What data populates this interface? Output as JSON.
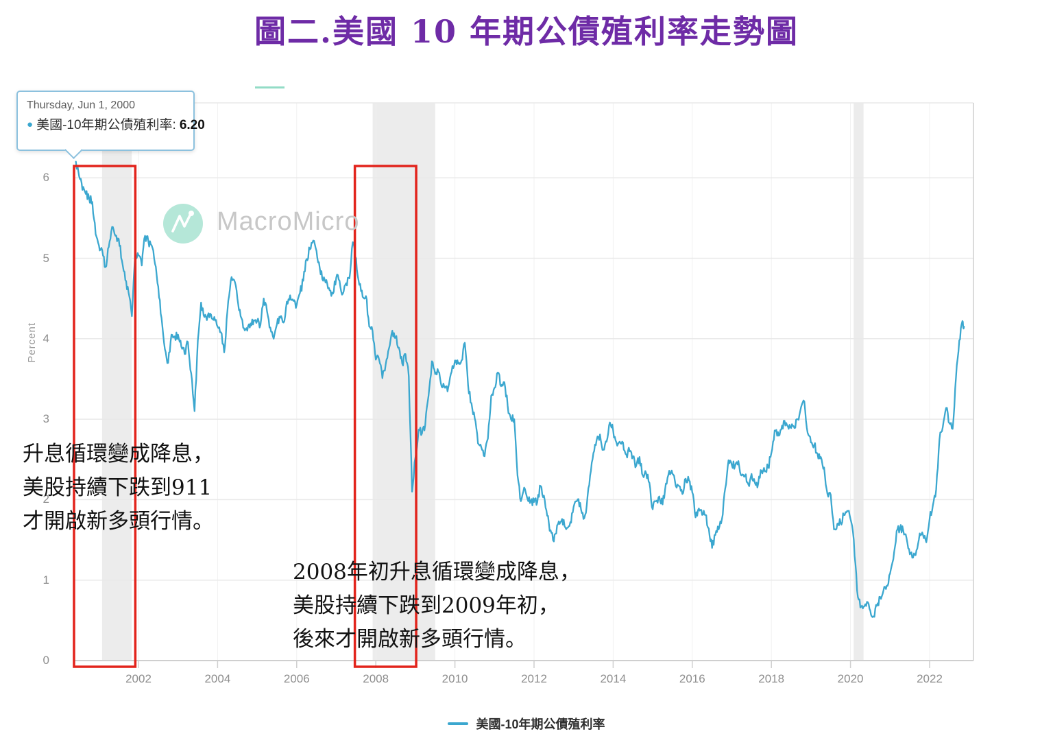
{
  "title": "圖二.美國 10 年期公債殖利率走勢圖",
  "watermark": "MacroMicro",
  "tooltip": {
    "date": "Thursday, Jun 1, 2000",
    "bullet": "●",
    "series_label": "美國-10年期公債殖利率:",
    "value": "6.20"
  },
  "annotations": {
    "left": {
      "line1": "升息循環變成降息，",
      "line2": "美股持續下跌到911",
      "line3": "才開啟新多頭行情。"
    },
    "right": {
      "line1": "2008年初升息循環變成降息，",
      "line2": "美股持續下跌到2009年初，",
      "line3": "後來才開啟新多頭行情。"
    }
  },
  "legend": {
    "label": "美國-10年期公債殖利率"
  },
  "colors": {
    "line": "#3BA7CF",
    "title": "#6E2BA6",
    "highlight_box": "#E2241C",
    "recession_band": "#ECECEC",
    "gridline": "#E9E9E9",
    "axis_line": "#CFCFCF",
    "tick_label": "#8E8E8E",
    "tooltip_border": "#8CC1DE",
    "watermark_circle": "#B5E7D8",
    "watermark_text": "#C7C7C7"
  },
  "chart_data": {
    "type": "line",
    "title": "美國 10 年期公債殖利率走勢圖",
    "ylabel": "Percent",
    "xlabel": "",
    "xlim": [
      2000.3,
      2023.1
    ],
    "ylim": [
      0,
      6.93
    ],
    "x_ticks": [
      2002,
      2004,
      2006,
      2008,
      2010,
      2012,
      2014,
      2016,
      2018,
      2020,
      2022
    ],
    "y_ticks": [
      0,
      1,
      2,
      3,
      4,
      5,
      6
    ],
    "grid": true,
    "legend_position": "bottom-center",
    "recession_bands": [
      [
        2001.08,
        2001.83
      ],
      [
        2007.92,
        2009.5
      ],
      [
        2020.08,
        2020.33
      ]
    ],
    "highlight_boxes": [
      [
        2000.37,
        2001.92
      ],
      [
        2007.47,
        2009.02
      ]
    ],
    "series": [
      {
        "name": "美國-10年期公債殖利率",
        "points": [
          [
            2000.417,
            6.2
          ],
          [
            2000.5,
            6.02
          ],
          [
            2000.583,
            5.85
          ],
          [
            2000.667,
            5.8
          ],
          [
            2000.75,
            5.75
          ],
          [
            2000.833,
            5.7
          ],
          [
            2000.917,
            5.3
          ],
          [
            2001.0,
            5.16
          ],
          [
            2001.083,
            5.1
          ],
          [
            2001.167,
            4.89
          ],
          [
            2001.25,
            5.14
          ],
          [
            2001.333,
            5.39
          ],
          [
            2001.417,
            5.28
          ],
          [
            2001.5,
            5.24
          ],
          [
            2001.583,
            4.97
          ],
          [
            2001.667,
            4.73
          ],
          [
            2001.75,
            4.57
          ],
          [
            2001.833,
            4.28
          ],
          [
            2001.917,
            5.05
          ],
          [
            2002.0,
            5.04
          ],
          [
            2002.083,
            4.91
          ],
          [
            2002.167,
            5.28
          ],
          [
            2002.25,
            5.21
          ],
          [
            2002.333,
            5.16
          ],
          [
            2002.417,
            4.93
          ],
          [
            2002.5,
            4.65
          ],
          [
            2002.583,
            4.26
          ],
          [
            2002.667,
            3.87
          ],
          [
            2002.75,
            3.7
          ],
          [
            2002.833,
            4.05
          ],
          [
            2002.917,
            4.03
          ],
          [
            2003.0,
            4.05
          ],
          [
            2003.083,
            3.9
          ],
          [
            2003.167,
            3.81
          ],
          [
            2003.25,
            3.96
          ],
          [
            2003.333,
            3.57
          ],
          [
            2003.417,
            3.1
          ],
          [
            2003.5,
            3.98
          ],
          [
            2003.583,
            4.45
          ],
          [
            2003.667,
            4.27
          ],
          [
            2003.75,
            4.29
          ],
          [
            2003.833,
            4.3
          ],
          [
            2003.917,
            4.27
          ],
          [
            2004.0,
            4.15
          ],
          [
            2004.083,
            4.08
          ],
          [
            2004.167,
            3.83
          ],
          [
            2004.25,
            4.35
          ],
          [
            2004.333,
            4.72
          ],
          [
            2004.417,
            4.73
          ],
          [
            2004.5,
            4.5
          ],
          [
            2004.583,
            4.28
          ],
          [
            2004.667,
            4.13
          ],
          [
            2004.75,
            4.1
          ],
          [
            2004.833,
            4.19
          ],
          [
            2004.917,
            4.23
          ],
          [
            2005.0,
            4.22
          ],
          [
            2005.083,
            4.17
          ],
          [
            2005.167,
            4.5
          ],
          [
            2005.25,
            4.34
          ],
          [
            2005.333,
            4.14
          ],
          [
            2005.417,
            4.0
          ],
          [
            2005.5,
            4.18
          ],
          [
            2005.583,
            4.26
          ],
          [
            2005.667,
            4.2
          ],
          [
            2005.75,
            4.46
          ],
          [
            2005.833,
            4.54
          ],
          [
            2005.917,
            4.47
          ],
          [
            2006.0,
            4.42
          ],
          [
            2006.083,
            4.57
          ],
          [
            2006.167,
            4.72
          ],
          [
            2006.25,
            4.99
          ],
          [
            2006.333,
            5.11
          ],
          [
            2006.417,
            5.22
          ],
          [
            2006.5,
            5.09
          ],
          [
            2006.583,
            4.88
          ],
          [
            2006.667,
            4.72
          ],
          [
            2006.75,
            4.73
          ],
          [
            2006.833,
            4.6
          ],
          [
            2006.917,
            4.56
          ],
          [
            2007.0,
            4.76
          ],
          [
            2007.083,
            4.72
          ],
          [
            2007.167,
            4.56
          ],
          [
            2007.25,
            4.69
          ],
          [
            2007.333,
            4.75
          ],
          [
            2007.417,
            5.2
          ],
          [
            2007.5,
            5.0
          ],
          [
            2007.583,
            4.67
          ],
          [
            2007.667,
            4.52
          ],
          [
            2007.75,
            4.53
          ],
          [
            2007.833,
            4.15
          ],
          [
            2007.917,
            4.1
          ],
          [
            2008.0,
            3.74
          ],
          [
            2008.083,
            3.74
          ],
          [
            2008.167,
            3.51
          ],
          [
            2008.25,
            3.68
          ],
          [
            2008.333,
            3.88
          ],
          [
            2008.417,
            4.1
          ],
          [
            2008.5,
            4.01
          ],
          [
            2008.583,
            3.89
          ],
          [
            2008.667,
            3.69
          ],
          [
            2008.75,
            3.81
          ],
          [
            2008.833,
            3.53
          ],
          [
            2008.917,
            2.1
          ],
          [
            2009.0,
            2.52
          ],
          [
            2009.083,
            2.87
          ],
          [
            2009.167,
            2.82
          ],
          [
            2009.25,
            2.93
          ],
          [
            2009.333,
            3.29
          ],
          [
            2009.417,
            3.72
          ],
          [
            2009.5,
            3.56
          ],
          [
            2009.583,
            3.59
          ],
          [
            2009.667,
            3.4
          ],
          [
            2009.75,
            3.39
          ],
          [
            2009.833,
            3.4
          ],
          [
            2009.917,
            3.59
          ],
          [
            2010.0,
            3.73
          ],
          [
            2010.083,
            3.69
          ],
          [
            2010.167,
            3.73
          ],
          [
            2010.25,
            3.95
          ],
          [
            2010.333,
            3.42
          ],
          [
            2010.417,
            3.2
          ],
          [
            2010.5,
            3.01
          ],
          [
            2010.583,
            2.7
          ],
          [
            2010.667,
            2.65
          ],
          [
            2010.75,
            2.54
          ],
          [
            2010.833,
            2.76
          ],
          [
            2010.917,
            3.29
          ],
          [
            2011.0,
            3.39
          ],
          [
            2011.083,
            3.58
          ],
          [
            2011.167,
            3.41
          ],
          [
            2011.25,
            3.46
          ],
          [
            2011.333,
            3.17
          ],
          [
            2011.417,
            3.0
          ],
          [
            2011.5,
            3.0
          ],
          [
            2011.583,
            2.3
          ],
          [
            2011.667,
            1.98
          ],
          [
            2011.75,
            2.15
          ],
          [
            2011.833,
            2.01
          ],
          [
            2011.917,
            1.98
          ],
          [
            2012.0,
            1.97
          ],
          [
            2012.083,
            1.97
          ],
          [
            2012.167,
            2.17
          ],
          [
            2012.25,
            2.05
          ],
          [
            2012.333,
            1.8
          ],
          [
            2012.417,
            1.62
          ],
          [
            2012.5,
            1.48
          ],
          [
            2012.583,
            1.68
          ],
          [
            2012.667,
            1.72
          ],
          [
            2012.75,
            1.75
          ],
          [
            2012.833,
            1.65
          ],
          [
            2012.917,
            1.72
          ],
          [
            2013.0,
            1.91
          ],
          [
            2013.083,
            1.98
          ],
          [
            2013.167,
            1.96
          ],
          [
            2013.25,
            1.76
          ],
          [
            2013.333,
            1.93
          ],
          [
            2013.417,
            2.3
          ],
          [
            2013.5,
            2.58
          ],
          [
            2013.583,
            2.74
          ],
          [
            2013.667,
            2.81
          ],
          [
            2013.75,
            2.62
          ],
          [
            2013.833,
            2.72
          ],
          [
            2013.917,
            2.96
          ],
          [
            2014.0,
            2.86
          ],
          [
            2014.083,
            2.71
          ],
          [
            2014.167,
            2.72
          ],
          [
            2014.25,
            2.71
          ],
          [
            2014.333,
            2.56
          ],
          [
            2014.417,
            2.6
          ],
          [
            2014.5,
            2.54
          ],
          [
            2014.583,
            2.42
          ],
          [
            2014.667,
            2.53
          ],
          [
            2014.75,
            2.3
          ],
          [
            2014.833,
            2.33
          ],
          [
            2014.917,
            2.21
          ],
          [
            2015.0,
            1.88
          ],
          [
            2015.083,
            1.98
          ],
          [
            2015.167,
            2.04
          ],
          [
            2015.25,
            1.94
          ],
          [
            2015.333,
            2.2
          ],
          [
            2015.417,
            2.36
          ],
          [
            2015.5,
            2.32
          ],
          [
            2015.583,
            2.17
          ],
          [
            2015.667,
            2.17
          ],
          [
            2015.75,
            2.07
          ],
          [
            2015.833,
            2.26
          ],
          [
            2015.917,
            2.24
          ],
          [
            2016.0,
            2.09
          ],
          [
            2016.083,
            1.78
          ],
          [
            2016.167,
            1.89
          ],
          [
            2016.25,
            1.81
          ],
          [
            2016.333,
            1.81
          ],
          [
            2016.417,
            1.64
          ],
          [
            2016.5,
            1.4
          ],
          [
            2016.583,
            1.56
          ],
          [
            2016.667,
            1.63
          ],
          [
            2016.75,
            1.76
          ],
          [
            2016.833,
            2.14
          ],
          [
            2016.917,
            2.49
          ],
          [
            2017.0,
            2.43
          ],
          [
            2017.083,
            2.42
          ],
          [
            2017.167,
            2.48
          ],
          [
            2017.25,
            2.3
          ],
          [
            2017.333,
            2.3
          ],
          [
            2017.417,
            2.19
          ],
          [
            2017.5,
            2.32
          ],
          [
            2017.583,
            2.21
          ],
          [
            2017.667,
            2.2
          ],
          [
            2017.75,
            2.36
          ],
          [
            2017.833,
            2.35
          ],
          [
            2017.917,
            2.4
          ],
          [
            2018.0,
            2.58
          ],
          [
            2018.083,
            2.86
          ],
          [
            2018.167,
            2.84
          ],
          [
            2018.25,
            2.87
          ],
          [
            2018.333,
            2.98
          ],
          [
            2018.417,
            2.91
          ],
          [
            2018.5,
            2.89
          ],
          [
            2018.583,
            2.89
          ],
          [
            2018.667,
            3.0
          ],
          [
            2018.75,
            3.15
          ],
          [
            2018.833,
            3.22
          ],
          [
            2018.917,
            2.83
          ],
          [
            2019.0,
            2.71
          ],
          [
            2019.083,
            2.68
          ],
          [
            2019.167,
            2.57
          ],
          [
            2019.25,
            2.53
          ],
          [
            2019.333,
            2.4
          ],
          [
            2019.417,
            2.07
          ],
          [
            2019.5,
            2.06
          ],
          [
            2019.583,
            1.63
          ],
          [
            2019.667,
            1.7
          ],
          [
            2019.75,
            1.71
          ],
          [
            2019.833,
            1.81
          ],
          [
            2019.917,
            1.86
          ],
          [
            2020.0,
            1.76
          ],
          [
            2020.083,
            1.5
          ],
          [
            2020.167,
            0.87
          ],
          [
            2020.25,
            0.66
          ],
          [
            2020.333,
            0.67
          ],
          [
            2020.417,
            0.73
          ],
          [
            2020.5,
            0.62
          ],
          [
            2020.583,
            0.55
          ],
          [
            2020.667,
            0.68
          ],
          [
            2020.75,
            0.79
          ],
          [
            2020.833,
            0.87
          ],
          [
            2020.917,
            0.93
          ],
          [
            2021.0,
            1.08
          ],
          [
            2021.083,
            1.26
          ],
          [
            2021.167,
            1.61
          ],
          [
            2021.25,
            1.64
          ],
          [
            2021.333,
            1.62
          ],
          [
            2021.417,
            1.52
          ],
          [
            2021.5,
            1.32
          ],
          [
            2021.583,
            1.28
          ],
          [
            2021.667,
            1.37
          ],
          [
            2021.75,
            1.58
          ],
          [
            2021.833,
            1.56
          ],
          [
            2021.917,
            1.47
          ],
          [
            2022.0,
            1.76
          ],
          [
            2022.083,
            1.93
          ],
          [
            2022.167,
            2.13
          ],
          [
            2022.25,
            2.75
          ],
          [
            2022.333,
            2.9
          ],
          [
            2022.417,
            3.14
          ],
          [
            2022.5,
            2.95
          ],
          [
            2022.583,
            2.88
          ],
          [
            2022.667,
            3.52
          ],
          [
            2022.75,
            3.98
          ],
          [
            2022.83,
            4.22
          ],
          [
            2022.87,
            4.15
          ]
        ]
      }
    ]
  }
}
